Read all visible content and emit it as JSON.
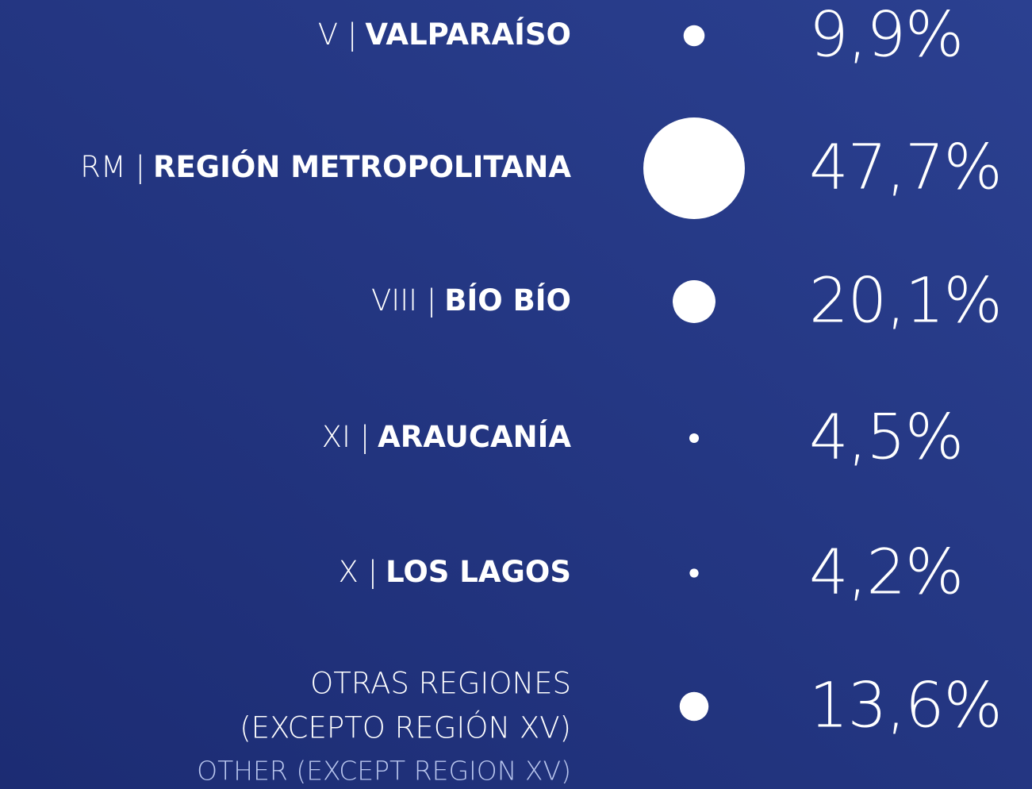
{
  "chart_data": {
    "type": "bubble",
    "categories": [
      {
        "code": "V |",
        "name": "VALPARAÍSO"
      },
      {
        "code": "RM |",
        "name": "REGIÓN METROPOLITANA"
      },
      {
        "code": "VIII |",
        "name": "BÍO BÍO"
      },
      {
        "code": "XI |",
        "name": "ARAUCANÍA"
      },
      {
        "code": "X |",
        "name": "LOS LAGOS"
      },
      {
        "lines": [
          "OTRAS REGIONES",
          "(EXCEPTO REGIÓN XV)"
        ],
        "translation": "OTHER (EXCEPT REGION XV)"
      }
    ],
    "values": [
      9.9,
      47.7,
      20.1,
      4.5,
      4.2,
      13.6
    ],
    "value_labels": [
      "9,9%",
      "47,7%",
      "20,1%",
      "4,5%",
      "4,2%",
      "13,6%"
    ],
    "color": "#ffffff"
  }
}
